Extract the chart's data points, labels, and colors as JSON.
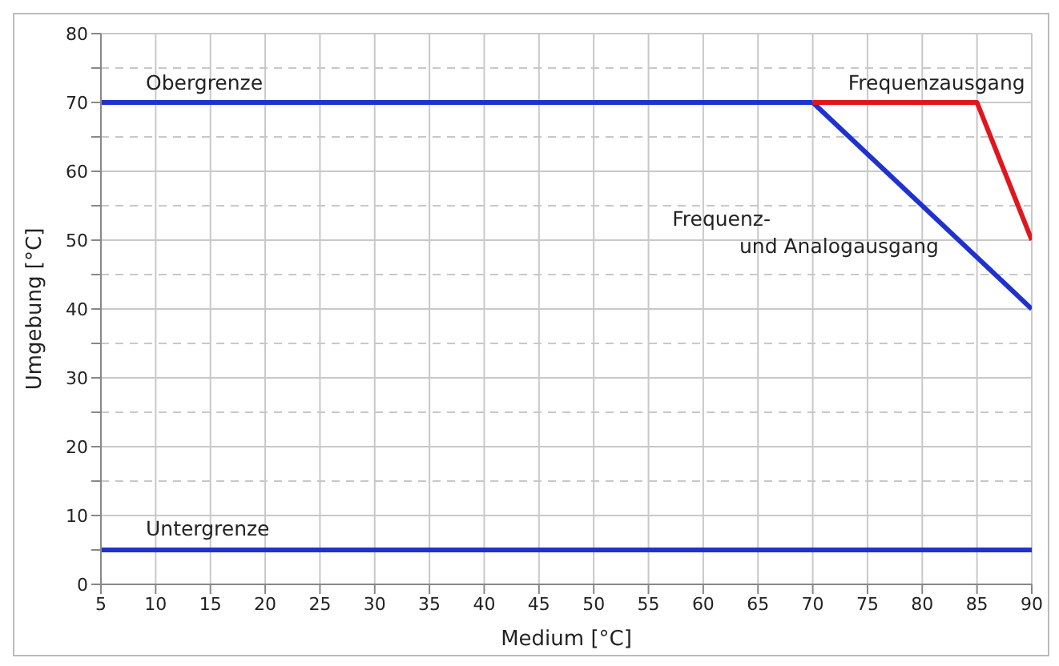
{
  "chart_data": {
    "type": "line",
    "xlabel": "Medium [°C]",
    "ylabel": "Umgebung [°C]",
    "xlim": [
      5,
      90
    ],
    "xticks": [
      5,
      10,
      15,
      20,
      25,
      30,
      35,
      40,
      45,
      50,
      55,
      60,
      65,
      70,
      75,
      80,
      85,
      90
    ],
    "ylim": [
      0,
      80
    ],
    "yticks": [
      0,
      {
        "value": 5,
        "label": null
      },
      10,
      {
        "value": 15,
        "label": null
      },
      20,
      {
        "value": 25,
        "label": null
      },
      30,
      {
        "value": 35,
        "label": null
      },
      40,
      {
        "value": 45,
        "label": null
      },
      50,
      {
        "value": 55,
        "label": null
      },
      60,
      {
        "value": 65,
        "label": null
      },
      70,
      {
        "value": 75,
        "label": null
      },
      80
    ],
    "grid": true,
    "marker": "none",
    "line_style": "solid",
    "series": [
      {
        "name": "Obergrenze",
        "color": "#1f32d0",
        "x": [
          5,
          70
        ],
        "values": [
          70,
          70
        ]
      },
      {
        "name": "Frequenz- und Analogausgang",
        "color": "#1f32d0",
        "x": [
          70,
          90
        ],
        "values": [
          70,
          40
        ]
      },
      {
        "name": "Frequenzausgang",
        "color": "#e0161e",
        "x": [
          70,
          85,
          90
        ],
        "values": [
          70,
          70,
          50
        ]
      },
      {
        "name": "Untergrenze",
        "color": "#1f32d0",
        "x": [
          5,
          90
        ],
        "values": [
          5,
          5
        ]
      }
    ]
  }
}
